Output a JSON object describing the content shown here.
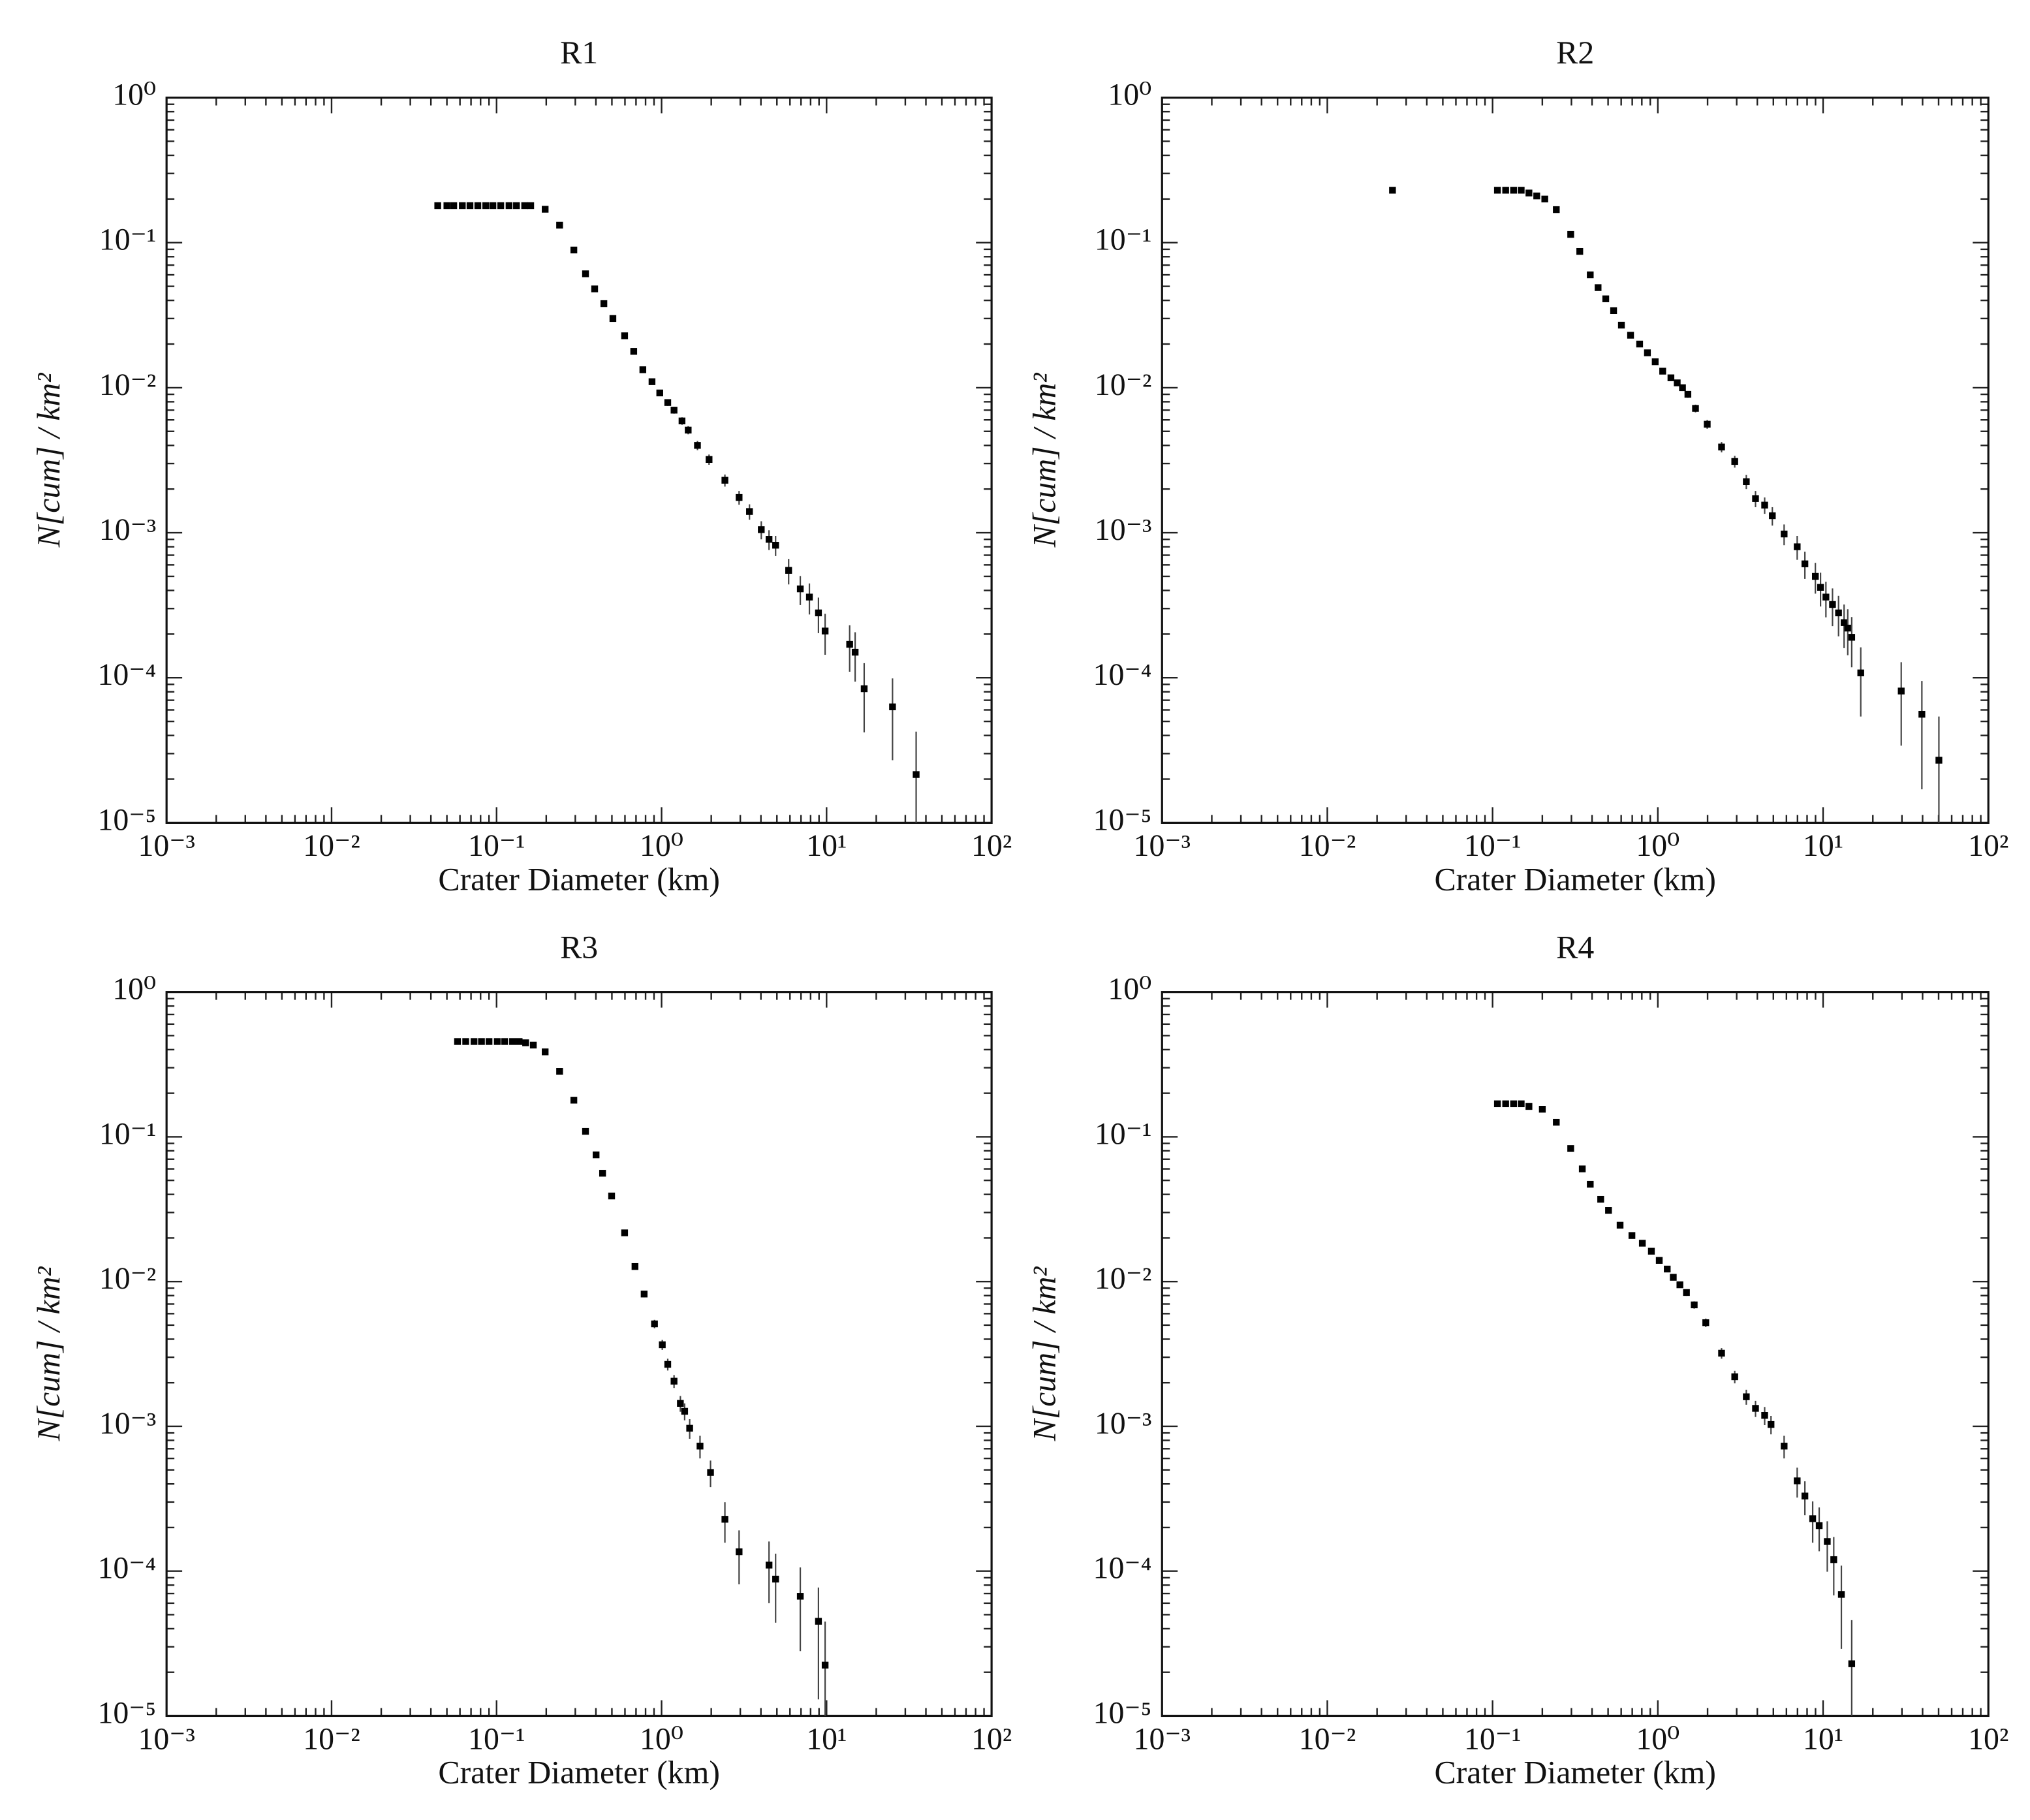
{
  "chart_data": [
    {
      "type": "scatter",
      "title": "R1",
      "x_label": "Crater Diameter (km)",
      "y_label": "N[cum] / km²",
      "color": "#000000",
      "log_x": true,
      "log_y": true,
      "xlim": [
        0.001,
        100
      ],
      "ylim": [
        1e-05,
        1
      ],
      "xticks": [
        {
          "value": 0.001,
          "label": "10⁻³"
        },
        {
          "value": 0.01,
          "label": "10⁻²"
        },
        {
          "value": 0.1,
          "label": "10⁻¹"
        },
        {
          "value": 1,
          "label": "10⁰"
        },
        {
          "value": 10,
          "label": "10¹"
        },
        {
          "value": 100,
          "label": "10²"
        }
      ],
      "yticks": [
        {
          "value": 1e-05,
          "label": "10⁻⁵"
        },
        {
          "value": 0.0001,
          "label": "10⁻⁴"
        },
        {
          "value": 0.001,
          "label": "10⁻³"
        },
        {
          "value": 0.01,
          "label": "10⁻²"
        },
        {
          "value": 0.1,
          "label": "10⁻¹"
        },
        {
          "value": 1,
          "label": "10⁰"
        }
      ],
      "x": [
        0.044,
        0.05,
        0.055,
        0.062,
        0.069,
        0.077,
        0.086,
        0.095,
        0.106,
        0.119,
        0.132,
        0.148,
        0.161,
        0.197,
        0.241,
        0.294,
        0.346,
        0.393,
        0.447,
        0.507,
        0.597,
        0.678,
        0.77,
        0.875,
        0.975,
        1.09,
        1.19,
        1.33,
        1.45,
        1.65,
        1.94,
        2.42,
        2.95,
        3.41,
        4.02,
        4.48,
        4.91,
        5.89,
        6.93,
        7.87,
        8.93,
        9.8,
        13.8,
        14.9,
        16.9,
        25.1,
        34.9
      ],
      "values": [
        0.18,
        0.18,
        0.18,
        0.18,
        0.18,
        0.18,
        0.18,
        0.18,
        0.18,
        0.18,
        0.18,
        0.18,
        0.18,
        0.17,
        0.132,
        0.089,
        0.061,
        0.048,
        0.038,
        0.03,
        0.0228,
        0.0178,
        0.0133,
        0.011,
        0.0092,
        0.0079,
        0.007,
        0.0059,
        0.0051,
        0.004,
        0.0032,
        0.0023,
        0.00175,
        0.0014,
        0.00105,
        0.0009,
        0.00082,
        0.00055,
        0.00041,
        0.00036,
        0.00028,
        0.00021,
        0.00017,
        0.00015,
        8.4e-05,
        6.3e-05,
        2.15e-05
      ],
      "errors": [
        0.00194,
        0.00194,
        0.00194,
        0.00194,
        0.00194,
        0.00194,
        0.00194,
        0.00194,
        0.00194,
        0.00194,
        0.00194,
        0.00194,
        0.00194,
        0.00189,
        0.00166,
        0.00137,
        0.00113,
        0.001,
        0.00089,
        0.00079,
        0.00069,
        0.00061,
        0.00053,
        0.00048,
        0.00044,
        0.00041,
        0.00038,
        0.00035,
        0.00033,
        0.00029,
        0.00026,
        0.00022,
        0.00019,
        0.00017,
        0.00015,
        0.00014,
        0.00013,
        0.00011,
        9.3e-05,
        8.7e-05,
        7.7e-05,
        6.6e-05,
        6e-05,
        5.6e-05,
        4.2e-05,
        3.6e-05,
        2.1e-05
      ]
    },
    {
      "type": "scatter",
      "title": "R2",
      "x_label": "Crater Diameter (km)",
      "y_label": "N[cum] / km²",
      "color": "#000000",
      "log_x": true,
      "log_y": true,
      "xlim": [
        0.001,
        100
      ],
      "ylim": [
        1e-05,
        1
      ],
      "xticks": [
        {
          "value": 0.001,
          "label": "10⁻³"
        },
        {
          "value": 0.01,
          "label": "10⁻²"
        },
        {
          "value": 0.1,
          "label": "10⁻¹"
        },
        {
          "value": 1,
          "label": "10⁰"
        },
        {
          "value": 10,
          "label": "10¹"
        },
        {
          "value": 100,
          "label": "10²"
        }
      ],
      "yticks": [
        {
          "value": 1e-05,
          "label": "10⁻⁵"
        },
        {
          "value": 0.0001,
          "label": "10⁻⁴"
        },
        {
          "value": 0.001,
          "label": "10⁻³"
        },
        {
          "value": 0.01,
          "label": "10⁻²"
        },
        {
          "value": 0.1,
          "label": "10⁻¹"
        },
        {
          "value": 1,
          "label": "10⁰"
        }
      ],
      "x": [
        0.0248,
        0.107,
        0.12,
        0.134,
        0.149,
        0.166,
        0.185,
        0.207,
        0.243,
        0.297,
        0.337,
        0.39,
        0.435,
        0.484,
        0.54,
        0.602,
        0.684,
        0.776,
        0.865,
        0.964,
        1.07,
        1.2,
        1.31,
        1.41,
        1.52,
        1.69,
        1.99,
        2.43,
        2.92,
        3.43,
        3.9,
        4.43,
        4.93,
        5.81,
        6.97,
        7.76,
        8.98,
        9.65,
        10.4,
        11.4,
        12.4,
        13.4,
        14.1,
        14.9,
        16.9,
        29.7,
        39.6,
        50.2
      ],
      "values": [
        0.23,
        0.23,
        0.23,
        0.23,
        0.23,
        0.22,
        0.21,
        0.2,
        0.169,
        0.114,
        0.087,
        0.06,
        0.049,
        0.041,
        0.034,
        0.027,
        0.023,
        0.02,
        0.0174,
        0.0151,
        0.013,
        0.0117,
        0.0108,
        0.01,
        0.009,
        0.0072,
        0.0056,
        0.0039,
        0.0031,
        0.00225,
        0.00172,
        0.00155,
        0.00131,
        0.00098,
        0.0008,
        0.00061,
        0.0005,
        0.00042,
        0.00036,
        0.00032,
        0.00028,
        0.00024,
        0.00022,
        0.00019,
        0.000108,
        8.1e-05,
        5.6e-05,
        2.7e-05
      ],
      "errors": [
        0.00249,
        0.00249,
        0.00249,
        0.00249,
        0.00249,
        0.00244,
        0.00238,
        0.00232,
        0.00214,
        0.00175,
        0.00153,
        0.00127,
        0.00115,
        0.00105,
        0.00096,
        0.00085,
        0.00079,
        0.00073,
        0.00069,
        0.00064,
        0.00059,
        0.00056,
        0.00054,
        0.00052,
        0.00049,
        0.00044,
        0.00039,
        0.00032,
        0.00029,
        0.00025,
        0.00022,
        0.0002,
        0.00019,
        0.00016,
        0.00015,
        0.00013,
        0.00012,
        0.00011,
        9.9e-05,
        9.3e-05,
        8.7e-05,
        8e-05,
        7.7e-05,
        7.2e-05,
        5.4e-05,
        4.7e-05,
        3.9e-05,
        2.7e-05
      ]
    },
    {
      "type": "scatter",
      "title": "R3",
      "x_label": "Crater Diameter (km)",
      "y_label": "N[cum] / km²",
      "color": "#000000",
      "log_x": true,
      "log_y": true,
      "xlim": [
        0.001,
        100
      ],
      "ylim": [
        1e-05,
        1
      ],
      "xticks": [
        {
          "value": 0.001,
          "label": "10⁻³"
        },
        {
          "value": 0.01,
          "label": "10⁻²"
        },
        {
          "value": 0.1,
          "label": "10⁻¹"
        },
        {
          "value": 1,
          "label": "10⁰"
        },
        {
          "value": 10,
          "label": "10¹"
        },
        {
          "value": 100,
          "label": "10²"
        }
      ],
      "yticks": [
        {
          "value": 1e-05,
          "label": "10⁻⁵"
        },
        {
          "value": 0.0001,
          "label": "10⁻⁴"
        },
        {
          "value": 0.001,
          "label": "10⁻³"
        },
        {
          "value": 0.01,
          "label": "10⁻²"
        },
        {
          "value": 0.1,
          "label": "10⁻¹"
        },
        {
          "value": 1,
          "label": "10⁰"
        }
      ],
      "x": [
        0.058,
        0.065,
        0.073,
        0.081,
        0.09,
        0.101,
        0.112,
        0.125,
        0.137,
        0.15,
        0.167,
        0.197,
        0.241,
        0.294,
        0.346,
        0.401,
        0.439,
        0.498,
        0.597,
        0.69,
        0.784,
        0.906,
        1.01,
        1.09,
        1.19,
        1.3,
        1.38,
        1.48,
        1.71,
        1.98,
        2.42,
        2.95,
        4.48,
        4.91,
        6.93,
        8.93,
        9.8
      ],
      "values": [
        0.455,
        0.455,
        0.455,
        0.455,
        0.455,
        0.455,
        0.455,
        0.455,
        0.455,
        0.446,
        0.43,
        0.386,
        0.283,
        0.179,
        0.109,
        0.075,
        0.056,
        0.039,
        0.0217,
        0.0127,
        0.0082,
        0.0051,
        0.00366,
        0.00268,
        0.00205,
        0.00144,
        0.00127,
        0.00097,
        0.00073,
        0.00048,
        0.000228,
        0.000136,
        0.00011,
        8.8e-05,
        6.7e-05,
        4.5e-05,
        2.24e-05
      ],
      "errors": [
        0.00319,
        0.00319,
        0.00319,
        0.00319,
        0.00319,
        0.00319,
        0.00319,
        0.00319,
        0.00319,
        0.00316,
        0.0031,
        0.00294,
        0.00252,
        0.002,
        0.00156,
        0.0013,
        0.00112,
        0.00093,
        0.0007,
        0.00053,
        0.00043,
        0.00034,
        0.00029,
        0.00025,
        0.00021,
        0.00018,
        0.00017,
        0.00015,
        0.00013,
        0.0001,
        7.1e-05,
        5.5e-05,
        5e-05,
        4.4e-05,
        3.9e-05,
        3.2e-05,
        2.24e-05
      ]
    },
    {
      "type": "scatter",
      "title": "R4",
      "x_label": "Crater Diameter (km)",
      "y_label": "N[cum] / km²",
      "color": "#000000",
      "log_x": true,
      "log_y": true,
      "xlim": [
        0.001,
        100
      ],
      "ylim": [
        1e-05,
        1
      ],
      "xticks": [
        {
          "value": 0.001,
          "label": "10⁻³"
        },
        {
          "value": 0.01,
          "label": "10⁻²"
        },
        {
          "value": 0.1,
          "label": "10⁻¹"
        },
        {
          "value": 1,
          "label": "10⁰"
        },
        {
          "value": 10,
          "label": "10¹"
        },
        {
          "value": 100,
          "label": "10²"
        }
      ],
      "yticks": [
        {
          "value": 1e-05,
          "label": "10⁻⁵"
        },
        {
          "value": 0.0001,
          "label": "10⁻⁴"
        },
        {
          "value": 0.001,
          "label": "10⁻³"
        },
        {
          "value": 0.01,
          "label": "10⁻²"
        },
        {
          "value": 0.1,
          "label": "10⁻¹"
        },
        {
          "value": 1,
          "label": "10⁰"
        }
      ],
      "x": [
        0.107,
        0.12,
        0.134,
        0.149,
        0.166,
        0.2,
        0.243,
        0.297,
        0.349,
        0.39,
        0.451,
        0.503,
        0.591,
        0.697,
        0.806,
        0.914,
        1.02,
        1.14,
        1.24,
        1.36,
        1.49,
        1.66,
        1.95,
        2.43,
        2.92,
        3.43,
        3.9,
        4.43,
        4.84,
        5.81,
        6.97,
        7.76,
        8.65,
        9.47,
        10.6,
        11.6,
        12.9,
        14.9
      ],
      "values": [
        0.169,
        0.169,
        0.169,
        0.169,
        0.162,
        0.155,
        0.126,
        0.083,
        0.06,
        0.047,
        0.037,
        0.031,
        0.0245,
        0.0208,
        0.0184,
        0.0162,
        0.014,
        0.0122,
        0.0107,
        0.0095,
        0.0084,
        0.0069,
        0.0052,
        0.0032,
        0.0022,
        0.0016,
        0.00133,
        0.00119,
        0.00103,
        0.00073,
        0.00042,
        0.00033,
        0.00023,
        0.000206,
        0.00016,
        0.00012,
        6.9e-05,
        2.29e-05
      ],
      "errors": [
        0.00197,
        0.00197,
        0.00197,
        0.00197,
        0.00193,
        0.00188,
        0.0017,
        0.00138,
        0.00117,
        0.00104,
        0.00092,
        0.00084,
        0.00075,
        0.00069,
        0.00065,
        0.00061,
        0.00057,
        0.00053,
        0.00049,
        0.00047,
        0.00044,
        0.0004,
        0.00035,
        0.00027,
        0.00022,
        0.00019,
        0.00017,
        0.00017,
        0.00015,
        0.00013,
        9.8e-05,
        8.7e-05,
        7.3e-05,
        6.9e-05,
        6.1e-05,
        5.2e-05,
        4e-05,
        2.29e-05
      ]
    }
  ]
}
